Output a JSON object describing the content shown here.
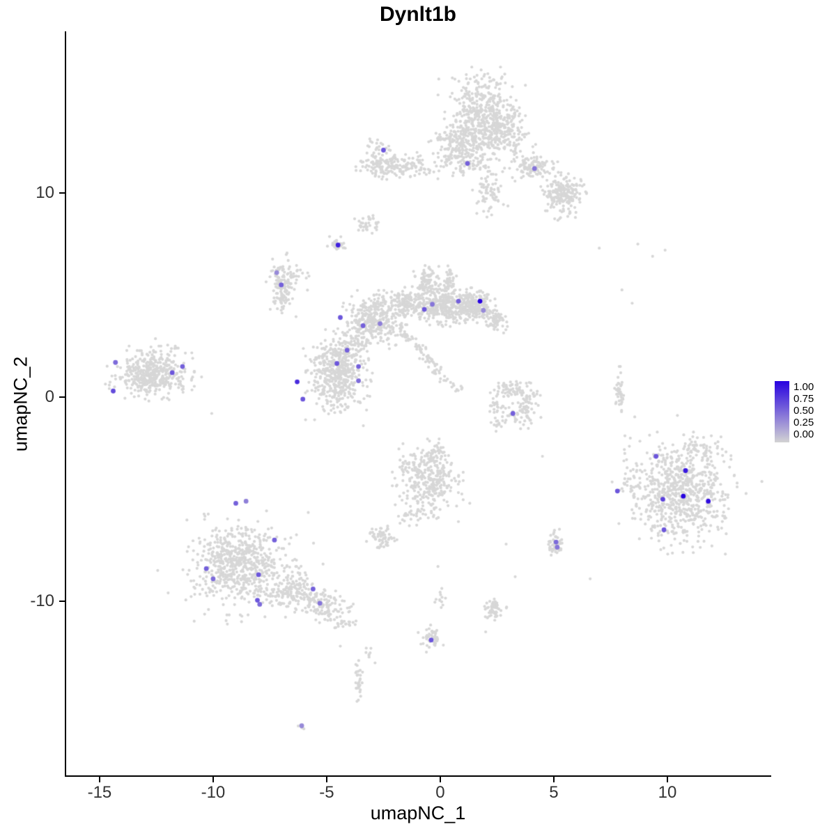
{
  "title": "Dynlt1b",
  "axes": {
    "x_label": "umapNC_1",
    "y_label": "umapNC_2",
    "x_ticks": [
      -15,
      -10,
      -5,
      0,
      5,
      10
    ],
    "x_tick_labels": [
      "-15",
      "-10",
      "-5",
      "0",
      "5",
      "10"
    ],
    "y_ticks": [
      10,
      0,
      -10
    ],
    "y_tick_labels": [
      "10",
      "0",
      "-10"
    ]
  },
  "legend": {
    "labels": [
      "1.00",
      "0.75",
      "0.50",
      "0.25",
      "0.00"
    ],
    "color_high": "#2702E0",
    "color_low": "#D3D3D3"
  },
  "style": {
    "background_point_color": "#D7D7D7",
    "point_radius": 2.1,
    "expressing_point_radius": 3.4,
    "axis_color": "#000000",
    "tick_label_color": "#333333"
  },
  "chart_data": {
    "type": "scatter",
    "title": "Dynlt1b",
    "xlabel": "umapNC_1",
    "ylabel": "umapNC_2",
    "xlim": [
      -16.47,
      14.51
    ],
    "ylim": [
      -18.6,
      17.92
    ],
    "grid": false,
    "legend_position": "right",
    "color_scale": {
      "low": "#D3D3D3",
      "high": "#2702E0",
      "domain": [
        0,
        1
      ]
    },
    "seed": 42,
    "background_clusters": [
      {
        "cx": 1.8,
        "cy": 13.7,
        "sx": 0.75,
        "sy": 0.95,
        "n": 520
      },
      {
        "cx": 0.6,
        "cy": 12.4,
        "sx": 0.5,
        "sy": 0.6,
        "n": 120
      },
      {
        "cx": 2.9,
        "cy": 12.9,
        "sx": 0.5,
        "sy": 0.6,
        "n": 120
      },
      {
        "cx": -2.4,
        "cy": 11.35,
        "sx": 0.55,
        "sy": 0.28,
        "n": 140
      },
      {
        "cx": -2.8,
        "cy": 12.3,
        "sx": 0.3,
        "sy": 0.2,
        "n": 20
      },
      {
        "cx": -1.0,
        "cy": 11.3,
        "sx": 0.55,
        "sy": 0.3,
        "n": 55
      },
      {
        "cx": 4.0,
        "cy": 11.3,
        "sx": 0.45,
        "sy": 0.3,
        "n": 110
      },
      {
        "cx": 5.4,
        "cy": 9.9,
        "sx": 0.4,
        "sy": 0.5,
        "n": 200
      },
      {
        "cx": 2.2,
        "cy": 10.1,
        "sx": 0.3,
        "sy": 0.5,
        "n": 70
      },
      {
        "cx": 1.0,
        "cy": 11.6,
        "sx": 0.5,
        "sy": 0.35,
        "n": 80
      },
      {
        "cx": -3.2,
        "cy": 8.55,
        "sx": 0.22,
        "sy": 0.22,
        "n": 35
      },
      {
        "cx": -4.5,
        "cy": 7.45,
        "sx": 0.18,
        "sy": 0.16,
        "n": 30
      },
      {
        "cx": -6.95,
        "cy": 5.5,
        "sx": 0.28,
        "sy": 0.6,
        "n": 140
      },
      {
        "cx": -6.3,
        "cy": 5.8,
        "sx": 0.2,
        "sy": 0.3,
        "n": 12
      },
      {
        "cx": -2.9,
        "cy": 3.8,
        "sx": 0.55,
        "sy": 0.55,
        "n": 330
      },
      {
        "cx": -1.6,
        "cy": 4.6,
        "sx": 0.35,
        "sy": 0.3,
        "n": 120
      },
      {
        "cx": 0.0,
        "cy": 4.5,
        "sx": 0.6,
        "sy": 0.4,
        "n": 320
      },
      {
        "cx": -0.6,
        "cy": 5.6,
        "sx": 0.25,
        "sy": 0.35,
        "n": 90
      },
      {
        "cx": 0.4,
        "cy": 5.7,
        "sx": 0.12,
        "sy": 0.3,
        "n": 40
      },
      {
        "cx": 1.45,
        "cy": 4.5,
        "sx": 0.4,
        "sy": 0.33,
        "n": 220
      },
      {
        "cx": 2.4,
        "cy": 3.8,
        "sx": 0.25,
        "sy": 0.3,
        "n": 70
      },
      {
        "cx": -4.5,
        "cy": 1.1,
        "sx": 0.55,
        "sy": 0.85,
        "n": 420
      },
      {
        "cx": -4.5,
        "cy": 1.2,
        "sx": 0.85,
        "sy": 1.0,
        "n": 60
      },
      {
        "cx": -3.9,
        "cy": 2.6,
        "sx": 0.35,
        "sy": 0.3,
        "n": 60
      },
      {
        "cx": -12.7,
        "cy": 1.15,
        "sx": 0.72,
        "sy": 0.52,
        "n": 400
      },
      {
        "cx": -12.7,
        "cy": 1.15,
        "sx": 1.1,
        "sy": 0.75,
        "n": 40
      },
      {
        "cx": 3.1,
        "cy": 0.4,
        "sx": 0.4,
        "sy": 0.25,
        "n": 55
      },
      {
        "cx": 3.9,
        "cy": -0.1,
        "sx": 0.25,
        "sy": 0.35,
        "n": 45
      },
      {
        "cx": 3.6,
        "cy": -0.9,
        "sx": 0.35,
        "sy": 0.25,
        "n": 40
      },
      {
        "cx": 2.6,
        "cy": -0.6,
        "sx": 0.25,
        "sy": 0.3,
        "n": 30
      },
      {
        "cx": 2.5,
        "cy": -1.3,
        "sx": 0.2,
        "sy": 0.15,
        "n": 12
      },
      {
        "cx": 7.9,
        "cy": 0.2,
        "sx": 0.1,
        "sy": 0.5,
        "n": 40
      },
      {
        "cx": 10.6,
        "cy": -4.7,
        "sx": 0.95,
        "sy": 1.15,
        "n": 620
      },
      {
        "cx": 10.6,
        "cy": -4.7,
        "sx": 1.45,
        "sy": 1.5,
        "n": 90
      },
      {
        "cx": 11.5,
        "cy": -2.6,
        "sx": 0.5,
        "sy": 0.35,
        "n": 60
      },
      {
        "cx": 8.3,
        "cy": -4.1,
        "sx": 0.35,
        "sy": 0.7,
        "n": 30
      },
      {
        "cx": -8.8,
        "cy": -8.2,
        "sx": 0.95,
        "sy": 0.95,
        "n": 580
      },
      {
        "cx": -8.8,
        "cy": -8.2,
        "sx": 1.4,
        "sy": 1.3,
        "n": 70
      },
      {
        "cx": -6.4,
        "cy": -9.6,
        "sx": 0.6,
        "sy": 0.5,
        "n": 180
      },
      {
        "cx": -5.0,
        "cy": -10.3,
        "sx": 0.45,
        "sy": 0.35,
        "n": 90
      },
      {
        "cx": -4.3,
        "cy": -11.1,
        "sx": 0.25,
        "sy": 0.25,
        "n": 20
      },
      {
        "cx": -0.55,
        "cy": -4.0,
        "sx": 0.6,
        "sy": 0.75,
        "n": 300
      },
      {
        "cx": -0.3,
        "cy": -2.8,
        "sx": 0.3,
        "sy": 0.25,
        "n": 40
      },
      {
        "cx": -1.3,
        "cy": -5.8,
        "sx": 0.35,
        "sy": 0.3,
        "n": 30
      },
      {
        "cx": -2.6,
        "cy": -6.9,
        "sx": 0.3,
        "sy": 0.25,
        "n": 60
      },
      {
        "cx": 5.05,
        "cy": -7.2,
        "sx": 0.16,
        "sy": 0.28,
        "n": 50
      },
      {
        "cx": 2.35,
        "cy": -10.4,
        "sx": 0.22,
        "sy": 0.22,
        "n": 55
      },
      {
        "cx": -0.4,
        "cy": -11.85,
        "sx": 0.22,
        "sy": 0.28,
        "n": 45
      },
      {
        "cx": -3.6,
        "cy": -14.1,
        "sx": 0.08,
        "sy": 0.55,
        "n": 30
      },
      {
        "cx": -3.2,
        "cy": -12.5,
        "sx": 0.25,
        "sy": 0.2,
        "n": 8
      },
      {
        "cx": -6.1,
        "cy": -16.1,
        "sx": 0.12,
        "sy": 0.1,
        "n": 4
      },
      {
        "cx": 0.0,
        "cy": -9.8,
        "sx": 0.12,
        "sy": 0.35,
        "n": 12
      }
    ],
    "background_streaks": [
      {
        "x1": -1.75,
        "y1": 3.4,
        "x2": 0.1,
        "y2": 1.0,
        "jx": 0.12,
        "jy": 0.12,
        "n": 70
      },
      {
        "x1": 0.1,
        "y1": 1.0,
        "x2": 1.0,
        "y2": 0.3,
        "jx": 0.1,
        "jy": 0.1,
        "n": 16
      }
    ],
    "extra_points": [
      [
        7.0,
        7.3
      ],
      [
        8.7,
        7.5
      ],
      [
        9.35,
        6.9
      ],
      [
        9.9,
        7.2
      ],
      [
        8.0,
        5.25
      ],
      [
        8.45,
        4.6
      ],
      [
        5.95,
        8.8
      ],
      [
        6.15,
        9.55
      ],
      [
        4.5,
        -2.9
      ],
      [
        3.3,
        -8.8
      ],
      [
        6.6,
        -8.9
      ],
      [
        2.9,
        -7.2
      ],
      [
        1.3,
        -5.2
      ],
      [
        0.8,
        -6.1
      ],
      [
        -0.1,
        -8.3
      ],
      [
        2.0,
        -11.5
      ],
      [
        -4.4,
        -12.2
      ],
      [
        -12.0,
        2.55
      ],
      [
        -10.9,
        1.9
      ]
    ],
    "expressing_cells": [
      [
        -2.5,
        12.1,
        0.6
      ],
      [
        1.2,
        11.45,
        0.55
      ],
      [
        4.15,
        11.2,
        0.45
      ],
      [
        -4.5,
        7.45,
        0.85
      ],
      [
        -7.2,
        6.1,
        0.35
      ],
      [
        -7.0,
        5.5,
        0.55
      ],
      [
        -0.7,
        4.3,
        0.6
      ],
      [
        -0.35,
        4.55,
        0.45
      ],
      [
        0.8,
        4.7,
        0.55
      ],
      [
        1.75,
        4.7,
        1.0
      ],
      [
        1.9,
        4.25,
        0.35
      ],
      [
        -4.4,
        3.9,
        0.6
      ],
      [
        -3.4,
        3.5,
        0.55
      ],
      [
        -2.65,
        3.6,
        0.4
      ],
      [
        -4.1,
        2.3,
        0.55
      ],
      [
        -4.55,
        1.65,
        0.6
      ],
      [
        -3.6,
        1.5,
        0.55
      ],
      [
        -3.6,
        0.8,
        0.5
      ],
      [
        -6.3,
        0.75,
        0.8
      ],
      [
        -6.05,
        -0.1,
        0.6
      ],
      [
        -14.3,
        1.7,
        0.5
      ],
      [
        -11.8,
        1.2,
        0.6
      ],
      [
        -11.35,
        1.5,
        0.55
      ],
      [
        -14.4,
        0.3,
        0.65
      ],
      [
        3.2,
        -0.8,
        0.55
      ],
      [
        9.5,
        -2.9,
        0.6
      ],
      [
        10.8,
        -3.6,
        0.9
      ],
      [
        10.7,
        -4.85,
        1.0
      ],
      [
        11.8,
        -5.1,
        0.95
      ],
      [
        9.8,
        -5.0,
        0.7
      ],
      [
        9.85,
        -6.5,
        0.6
      ],
      [
        7.8,
        -4.6,
        0.6
      ],
      [
        -9.0,
        -5.2,
        0.55
      ],
      [
        -8.55,
        -5.1,
        0.4
      ],
      [
        -7.3,
        -7.0,
        0.55
      ],
      [
        -10.3,
        -8.4,
        0.55
      ],
      [
        -10.0,
        -8.9,
        0.5
      ],
      [
        -8.0,
        -8.7,
        0.6
      ],
      [
        -8.05,
        -9.95,
        0.6
      ],
      [
        -7.95,
        -10.15,
        0.5
      ],
      [
        -5.6,
        -9.4,
        0.55
      ],
      [
        -5.3,
        -10.1,
        0.45
      ],
      [
        -0.4,
        -11.9,
        0.6
      ],
      [
        5.1,
        -7.1,
        0.5
      ],
      [
        5.15,
        -7.35,
        0.45
      ],
      [
        -6.1,
        -16.1,
        0.35
      ]
    ]
  }
}
